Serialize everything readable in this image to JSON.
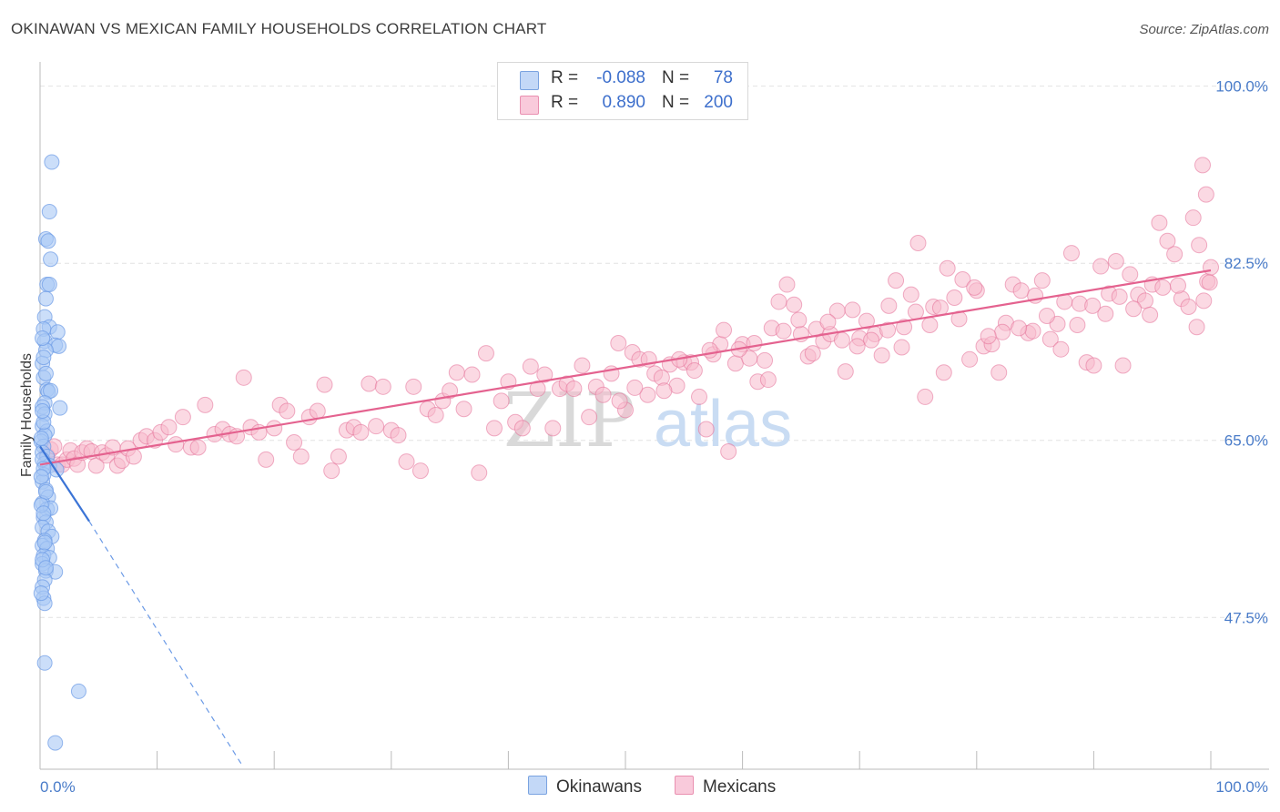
{
  "header": {
    "title": "OKINAWAN VS MEXICAN FAMILY HOUSEHOLDS CORRELATION CHART",
    "source": "Source: ZipAtlas.com"
  },
  "legend": {
    "rows": [
      {
        "r_label": "R =",
        "r_value": "-0.088",
        "n_label": "N =",
        "n_value": "78",
        "color": "#a9c8f5"
      },
      {
        "r_label": "R =",
        "r_value": "0.890",
        "n_label": "N =",
        "n_value": "200",
        "color": "#f7b9cc"
      }
    ],
    "series_names": [
      "Okinawans",
      "Mexicans"
    ]
  },
  "watermark": {
    "part1": "ZIP",
    "part2": "atlas"
  },
  "chart_data": {
    "type": "scatter",
    "title": "OKINAWAN VS MEXICAN FAMILY HOUSEHOLDS CORRELATION CHART",
    "xlabel": "",
    "ylabel": "Family Households",
    "xlim": [
      0,
      100
    ],
    "ylim": [
      32.5,
      101.5
    ],
    "y_ticks": [
      47.5,
      65.0,
      82.5,
      100.0
    ],
    "y_tick_labels": [
      "47.5%",
      "65.0%",
      "82.5%",
      "100.0%"
    ],
    "x_tick_labels": [
      "0.0%",
      "100.0%"
    ],
    "series": [
      {
        "name": "Okinawans",
        "color": "#6b9ae6",
        "fill": "#a9c8f5",
        "trend": {
          "x0": 0,
          "y0": 64.4,
          "x1": 4.2,
          "y1": 57.0,
          "dashed_to_x": 17.2,
          "dashed_to_y": 33.0
        },
        "points": [
          [
            1.0,
            92.5
          ],
          [
            0.8,
            87.6
          ],
          [
            0.5,
            84.9
          ],
          [
            0.7,
            84.7
          ],
          [
            0.9,
            82.9
          ],
          [
            0.6,
            80.4
          ],
          [
            0.8,
            80.4
          ],
          [
            0.5,
            79.0
          ],
          [
            0.4,
            77.2
          ],
          [
            0.8,
            76.2
          ],
          [
            0.3,
            76.0
          ],
          [
            1.5,
            75.7
          ],
          [
            0.4,
            74.8
          ],
          [
            1.3,
            74.4
          ],
          [
            1.6,
            74.3
          ],
          [
            0.5,
            73.9
          ],
          [
            0.2,
            72.6
          ],
          [
            0.3,
            71.2
          ],
          [
            0.6,
            70.0
          ],
          [
            0.7,
            69.8
          ],
          [
            0.9,
            69.9
          ],
          [
            0.4,
            68.7
          ],
          [
            0.2,
            68.3
          ],
          [
            1.7,
            68.2
          ],
          [
            0.4,
            67.6
          ],
          [
            0.2,
            66.4
          ],
          [
            0.6,
            65.9
          ],
          [
            0.4,
            65.5
          ],
          [
            0.1,
            64.9
          ],
          [
            0.3,
            64.4
          ],
          [
            0.2,
            63.8
          ],
          [
            0.6,
            63.4
          ],
          [
            0.4,
            62.7
          ],
          [
            0.8,
            62.5
          ],
          [
            1.4,
            62.1
          ],
          [
            0.3,
            61.6
          ],
          [
            0.2,
            60.9
          ],
          [
            0.5,
            60.1
          ],
          [
            0.7,
            59.4
          ],
          [
            0.2,
            58.8
          ],
          [
            0.6,
            58.2
          ],
          [
            0.9,
            58.3
          ],
          [
            0.3,
            57.4
          ],
          [
            0.5,
            56.9
          ],
          [
            0.2,
            56.4
          ],
          [
            0.7,
            56.0
          ],
          [
            1.0,
            55.5
          ],
          [
            0.4,
            55.1
          ],
          [
            0.2,
            54.6
          ],
          [
            0.6,
            54.3
          ],
          [
            0.3,
            53.6
          ],
          [
            0.8,
            53.4
          ],
          [
            0.2,
            52.8
          ],
          [
            0.5,
            52.1
          ],
          [
            1.3,
            52.0
          ],
          [
            0.4,
            51.2
          ],
          [
            0.2,
            50.5
          ],
          [
            0.3,
            49.4
          ],
          [
            0.4,
            48.9
          ],
          [
            0.4,
            43.0
          ],
          [
            3.3,
            40.2
          ],
          [
            1.3,
            35.1
          ],
          [
            0.1,
            65.2
          ],
          [
            0.2,
            63.1
          ],
          [
            0.3,
            62.2
          ],
          [
            0.1,
            61.4
          ],
          [
            0.5,
            59.9
          ],
          [
            0.1,
            58.6
          ],
          [
            0.3,
            57.8
          ],
          [
            0.4,
            54.9
          ],
          [
            0.2,
            53.2
          ],
          [
            0.5,
            52.4
          ],
          [
            0.1,
            49.9
          ],
          [
            0.3,
            66.8
          ],
          [
            0.2,
            67.9
          ],
          [
            0.5,
            71.6
          ],
          [
            0.3,
            73.2
          ],
          [
            0.2,
            75.1
          ]
        ]
      },
      {
        "name": "Mexicans",
        "color": "#e46f97",
        "fill": "#f7b9cc",
        "trend": {
          "x0": 0,
          "y0": 62.6,
          "x1": 100,
          "y1": 81.8
        },
        "points": [
          [
            0.6,
            63.5
          ],
          [
            0.9,
            64.1
          ],
          [
            1.2,
            64.4
          ],
          [
            1.5,
            62.6
          ],
          [
            1.9,
            62.6
          ],
          [
            2.3,
            63.1
          ],
          [
            2.6,
            64.0
          ],
          [
            2.9,
            63.2
          ],
          [
            3.2,
            62.6
          ],
          [
            3.6,
            63.8
          ],
          [
            4.0,
            64.2
          ],
          [
            4.4,
            63.9
          ],
          [
            4.8,
            62.5
          ],
          [
            5.3,
            63.8
          ],
          [
            5.7,
            63.5
          ],
          [
            6.2,
            64.3
          ],
          [
            6.6,
            62.5
          ],
          [
            7.0,
            63.0
          ],
          [
            7.5,
            64.2
          ],
          [
            8.0,
            63.4
          ],
          [
            8.6,
            65.0
          ],
          [
            9.1,
            65.4
          ],
          [
            9.8,
            65.0
          ],
          [
            10.3,
            65.8
          ],
          [
            11.0,
            66.3
          ],
          [
            11.6,
            64.6
          ],
          [
            12.2,
            67.3
          ],
          [
            12.9,
            64.3
          ],
          [
            13.5,
            64.3
          ],
          [
            14.1,
            68.5
          ],
          [
            14.9,
            65.6
          ],
          [
            15.6,
            66.1
          ],
          [
            16.2,
            65.6
          ],
          [
            16.8,
            65.4
          ],
          [
            17.4,
            71.2
          ],
          [
            18.0,
            66.3
          ],
          [
            18.7,
            65.8
          ],
          [
            19.3,
            63.1
          ],
          [
            20.0,
            66.2
          ],
          [
            20.5,
            68.5
          ],
          [
            21.1,
            67.9
          ],
          [
            21.7,
            64.8
          ],
          [
            22.3,
            63.4
          ],
          [
            23.0,
            67.3
          ],
          [
            23.7,
            67.9
          ],
          [
            24.3,
            70.5
          ],
          [
            24.9,
            62.0
          ],
          [
            25.5,
            63.4
          ],
          [
            26.2,
            66.0
          ],
          [
            26.8,
            66.3
          ],
          [
            27.4,
            65.8
          ],
          [
            28.1,
            70.6
          ],
          [
            28.7,
            66.4
          ],
          [
            29.3,
            70.3
          ],
          [
            30.0,
            66.0
          ],
          [
            30.6,
            65.5
          ],
          [
            31.3,
            62.9
          ],
          [
            31.9,
            70.3
          ],
          [
            32.5,
            62.0
          ],
          [
            33.1,
            68.1
          ],
          [
            33.8,
            67.5
          ],
          [
            34.4,
            68.9
          ],
          [
            35.0,
            69.9
          ],
          [
            35.6,
            71.7
          ],
          [
            36.2,
            68.1
          ],
          [
            36.9,
            71.5
          ],
          [
            37.5,
            61.8
          ],
          [
            38.1,
            73.6
          ],
          [
            38.8,
            66.2
          ],
          [
            39.4,
            68.9
          ],
          [
            40.0,
            70.8
          ],
          [
            40.6,
            66.8
          ],
          [
            41.2,
            66.2
          ],
          [
            41.9,
            72.3
          ],
          [
            42.5,
            70.1
          ],
          [
            43.1,
            71.5
          ],
          [
            43.8,
            66.2
          ],
          [
            44.4,
            70.1
          ],
          [
            45.0,
            70.6
          ],
          [
            45.6,
            70.1
          ],
          [
            46.3,
            72.4
          ],
          [
            46.9,
            67.3
          ],
          [
            47.5,
            70.3
          ],
          [
            48.1,
            69.5
          ],
          [
            48.8,
            71.6
          ],
          [
            49.4,
            74.6
          ],
          [
            50.0,
            68.0
          ],
          [
            50.6,
            73.7
          ],
          [
            51.2,
            73.0
          ],
          [
            51.9,
            69.5
          ],
          [
            52.5,
            71.6
          ],
          [
            53.1,
            71.2
          ],
          [
            53.8,
            72.5
          ],
          [
            54.4,
            70.4
          ],
          [
            55.0,
            72.7
          ],
          [
            55.6,
            72.7
          ],
          [
            56.3,
            69.3
          ],
          [
            56.9,
            66.1
          ],
          [
            57.5,
            73.5
          ],
          [
            58.1,
            74.5
          ],
          [
            58.8,
            63.9
          ],
          [
            59.4,
            72.6
          ],
          [
            60.0,
            74.5
          ],
          [
            60.6,
            73.1
          ],
          [
            61.3,
            70.8
          ],
          [
            61.9,
            72.9
          ],
          [
            62.5,
            76.1
          ],
          [
            63.1,
            78.7
          ],
          [
            63.8,
            80.4
          ],
          [
            64.4,
            78.4
          ],
          [
            65.0,
            75.5
          ],
          [
            65.6,
            73.3
          ],
          [
            66.3,
            76.0
          ],
          [
            66.9,
            74.8
          ],
          [
            67.5,
            75.5
          ],
          [
            68.1,
            77.8
          ],
          [
            68.8,
            71.8
          ],
          [
            69.4,
            77.9
          ],
          [
            70.0,
            75.1
          ],
          [
            70.6,
            76.8
          ],
          [
            71.3,
            75.5
          ],
          [
            71.9,
            73.4
          ],
          [
            72.5,
            78.3
          ],
          [
            73.1,
            80.8
          ],
          [
            73.8,
            76.2
          ],
          [
            74.4,
            79.4
          ],
          [
            75.0,
            84.5
          ],
          [
            75.6,
            69.3
          ],
          [
            76.3,
            78.2
          ],
          [
            76.9,
            78.1
          ],
          [
            77.5,
            82.0
          ],
          [
            78.1,
            79.1
          ],
          [
            78.8,
            80.9
          ],
          [
            79.4,
            73.0
          ],
          [
            80.0,
            79.8
          ],
          [
            80.6,
            74.3
          ],
          [
            81.3,
            74.5
          ],
          [
            81.9,
            71.7
          ],
          [
            82.5,
            76.6
          ],
          [
            83.1,
            80.4
          ],
          [
            83.8,
            79.8
          ],
          [
            84.4,
            75.6
          ],
          [
            85.0,
            79.3
          ],
          [
            85.6,
            80.8
          ],
          [
            86.3,
            75.0
          ],
          [
            86.9,
            76.5
          ],
          [
            87.5,
            78.7
          ],
          [
            88.1,
            83.5
          ],
          [
            88.8,
            78.5
          ],
          [
            89.4,
            72.7
          ],
          [
            90.0,
            72.4
          ],
          [
            90.6,
            82.2
          ],
          [
            91.3,
            79.5
          ],
          [
            91.9,
            82.7
          ],
          [
            92.5,
            72.4
          ],
          [
            93.1,
            81.4
          ],
          [
            93.8,
            79.4
          ],
          [
            94.4,
            78.8
          ],
          [
            95.0,
            80.4
          ],
          [
            95.6,
            86.5
          ],
          [
            96.3,
            84.7
          ],
          [
            96.9,
            83.4
          ],
          [
            97.5,
            79.0
          ],
          [
            98.1,
            78.2
          ],
          [
            98.8,
            76.2
          ],
          [
            99.4,
            78.8
          ],
          [
            99.7,
            80.7
          ],
          [
            98.5,
            87.0
          ],
          [
            99.0,
            84.3
          ],
          [
            99.9,
            80.6
          ],
          [
            100.0,
            82.1
          ],
          [
            99.6,
            89.3
          ],
          [
            99.3,
            92.2
          ],
          [
            97.2,
            80.3
          ],
          [
            95.9,
            80.1
          ],
          [
            94.8,
            77.4
          ],
          [
            93.4,
            78.0
          ],
          [
            92.2,
            79.2
          ],
          [
            91.0,
            77.5
          ],
          [
            89.9,
            78.3
          ],
          [
            88.6,
            76.4
          ],
          [
            87.2,
            74.0
          ],
          [
            86.0,
            77.3
          ],
          [
            84.8,
            75.8
          ],
          [
            83.6,
            76.1
          ],
          [
            82.2,
            75.7
          ],
          [
            81.0,
            75.3
          ],
          [
            79.8,
            80.1
          ],
          [
            78.5,
            77.0
          ],
          [
            77.2,
            71.7
          ],
          [
            76.0,
            76.4
          ],
          [
            74.8,
            77.7
          ],
          [
            73.6,
            74.2
          ],
          [
            72.4,
            75.9
          ],
          [
            71.0,
            74.9
          ],
          [
            69.8,
            74.3
          ],
          [
            68.5,
            74.9
          ],
          [
            67.3,
            76.7
          ],
          [
            66.0,
            73.6
          ],
          [
            64.8,
            76.9
          ],
          [
            63.5,
            75.8
          ],
          [
            62.2,
            71.0
          ],
          [
            61.0,
            74.6
          ],
          [
            59.7,
            74.0
          ],
          [
            58.4,
            75.9
          ],
          [
            57.2,
            73.9
          ],
          [
            55.9,
            71.9
          ],
          [
            54.6,
            73.0
          ],
          [
            53.3,
            69.9
          ],
          [
            52.0,
            73.0
          ],
          [
            50.8,
            70.2
          ],
          [
            49.5,
            68.9
          ]
        ]
      }
    ]
  }
}
